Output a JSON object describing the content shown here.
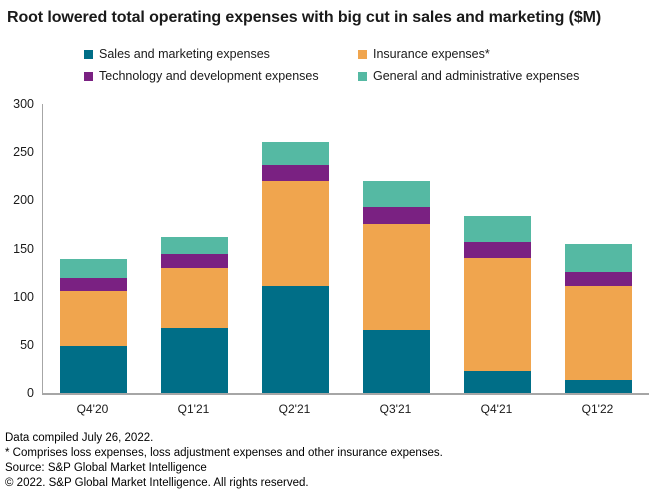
{
  "chart_data": {
    "type": "bar",
    "stacked": true,
    "title": "Root lowered total operating expenses with big cut in sales and marketing ($M)",
    "categories": [
      "Q4'20",
      "Q1'21",
      "Q2'21",
      "Q3'21",
      "Q4'21",
      "Q1'22"
    ],
    "series": [
      {
        "name": "Sales and marketing expenses",
        "color": "#006E87",
        "values": [
          49,
          67,
          111,
          65,
          23,
          13
        ]
      },
      {
        "name": "Insurance expenses*",
        "color": "#F0A54E",
        "values": [
          57,
          63,
          109,
          110,
          117,
          98
        ]
      },
      {
        "name": "Technology and development expenses",
        "color": "#7A2182",
        "values": [
          13,
          14,
          17,
          18,
          17,
          15
        ]
      },
      {
        "name": "General and administrative expenses",
        "color": "#55B9A3",
        "values": [
          20,
          18,
          24,
          27,
          27,
          29
        ]
      }
    ],
    "xlabel": "",
    "ylabel": "",
    "ylim": [
      0,
      300
    ],
    "yticks": [
      0,
      50,
      100,
      150,
      200,
      250,
      300
    ],
    "grid": false,
    "legend_position": "top",
    "axis_color": "#A6A6A6",
    "text_color": "#1A1A1A"
  },
  "footer": {
    "compiled": "Data compiled July 26, 2022.",
    "asterisk_note": "* Comprises loss expenses, loss adjustment expenses and other insurance expenses.",
    "source": "Source: S&P Global Market Intelligence",
    "copyright": "© 2022. S&P Global Market Intelligence. All rights reserved."
  }
}
